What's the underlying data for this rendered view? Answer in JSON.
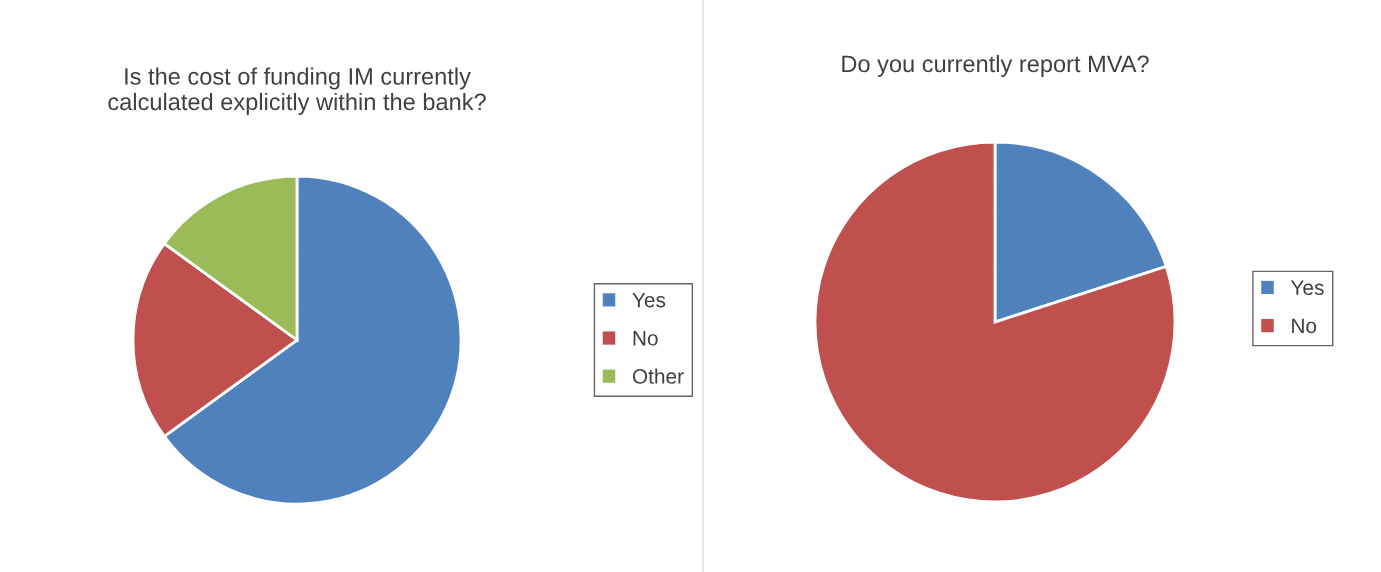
{
  "chart_data": [
    {
      "type": "pie",
      "title": "Is the cost of funding IM currently\ncalculated explicitly within the bank?",
      "categories": [
        "Yes",
        "No",
        "Other"
      ],
      "values": [
        65,
        20,
        15
      ],
      "colors": [
        "#4f81bd",
        "#c0504d",
        "#9bbb59"
      ],
      "legend": "right"
    },
    {
      "type": "pie",
      "title": "Do you currently report MVA?",
      "categories": [
        "Yes",
        "No"
      ],
      "values": [
        20,
        80
      ],
      "colors": [
        "#4f81bd",
        "#c0504d"
      ],
      "legend": "right"
    }
  ]
}
